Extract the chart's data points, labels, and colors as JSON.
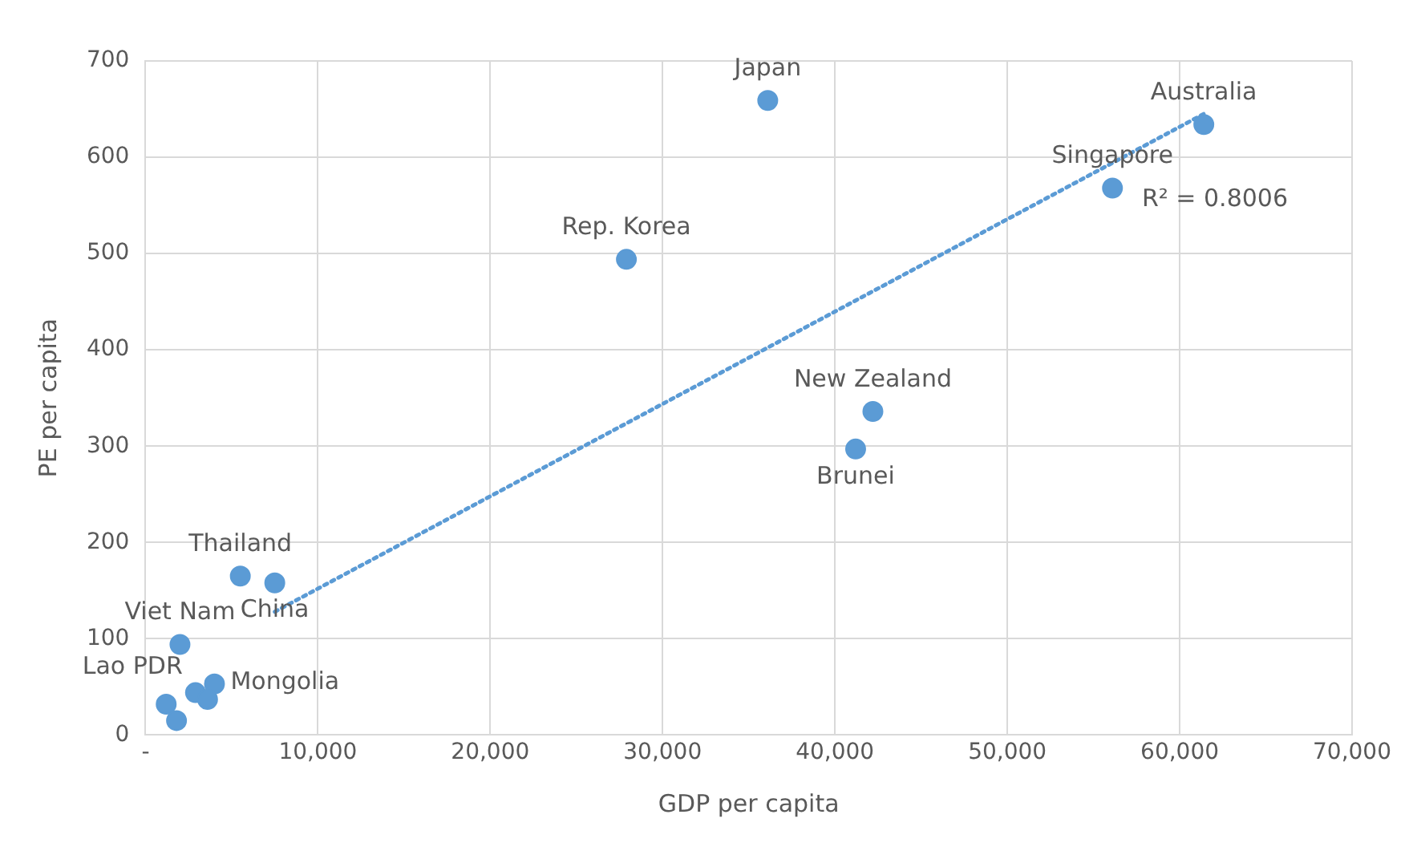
{
  "chart_data": {
    "type": "scatter",
    "xlabel": "GDP per capita",
    "ylabel": "PE per capita",
    "xlim": [
      0,
      70000
    ],
    "ylim": [
      0,
      700
    ],
    "xticks": [
      {
        "value": 0,
        "label": "-"
      },
      {
        "value": 10000,
        "label": "10,000"
      },
      {
        "value": 20000,
        "label": "20,000"
      },
      {
        "value": 30000,
        "label": "30,000"
      },
      {
        "value": 40000,
        "label": "40,000"
      },
      {
        "value": 50000,
        "label": "50,000"
      },
      {
        "value": 60000,
        "label": "60,000"
      },
      {
        "value": 70000,
        "label": "70,000"
      }
    ],
    "yticks": [
      0,
      100,
      200,
      300,
      400,
      500,
      600,
      700
    ],
    "grid": true,
    "marker": "circle",
    "series": [
      {
        "type": "scatter",
        "color": "#5b9bd5",
        "x": [
          36100,
          61400,
          56100,
          27900,
          42200,
          41200,
          5500,
          7500,
          2000,
          2900,
          4000,
          1200,
          1800,
          3600
        ],
        "values": [
          659,
          634,
          568,
          494,
          336,
          297,
          165,
          158,
          94,
          44,
          53,
          32,
          15,
          37
        ]
      },
      {
        "type": "line",
        "color": "#5b9bd5",
        "line_style": "dotted",
        "marker": "none",
        "x": [
          7500,
          61400
        ],
        "values": [
          128,
          645
        ]
      }
    ],
    "annotations": [
      {
        "text": "Japan",
        "x": 36100,
        "y": 659
      },
      {
        "text": "Australia",
        "x": 61400,
        "y": 634
      },
      {
        "text": "Singapore",
        "x": 56100,
        "y": 568
      },
      {
        "text": "Rep. Korea",
        "x": 27900,
        "y": 494
      },
      {
        "text": "New Zealand",
        "x": 42200,
        "y": 336
      },
      {
        "text": "Brunei",
        "x": 41200,
        "y": 297
      },
      {
        "text": "Thailand",
        "x": 5500,
        "y": 165
      },
      {
        "text": "China",
        "x": 7500,
        "y": 158
      },
      {
        "text": "Viet Nam",
        "x": 2000,
        "y": 94
      },
      {
        "text": "Lao PDR",
        "x": 2900,
        "y": 44
      },
      {
        "text": "Mongolia",
        "x": 4000,
        "y": 53
      },
      "R² = 0.8006"
    ]
  }
}
